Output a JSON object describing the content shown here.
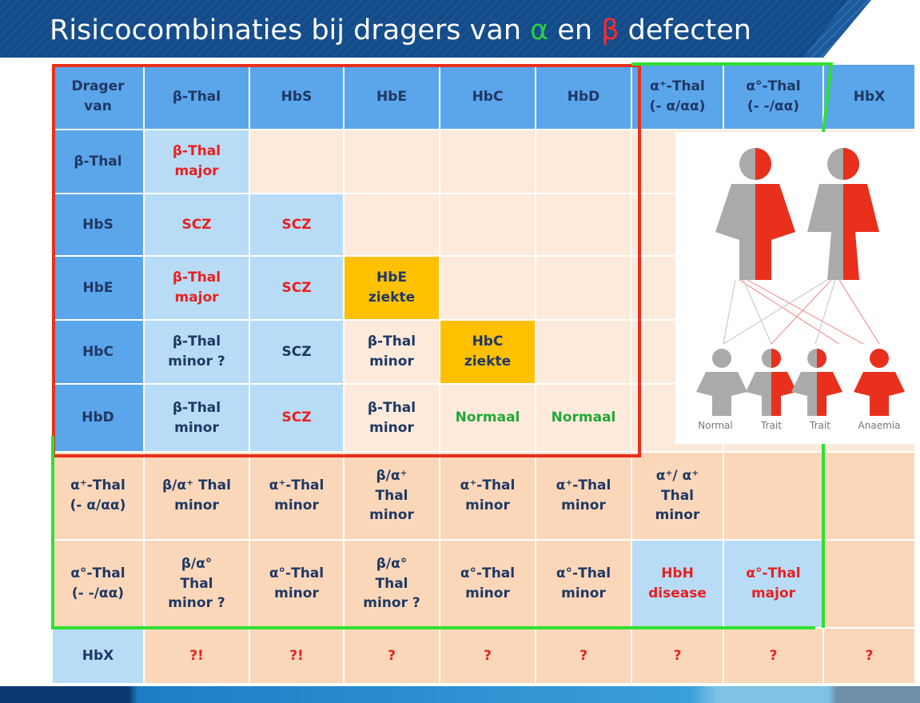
{
  "title": {
    "parts": [
      "Risicocombinaties bij dragers van ",
      "α",
      " en ",
      "β",
      " defecten"
    ]
  },
  "table": {
    "rows": [
      [
        [
          "Drager",
          "van"
        ],
        [
          "β-Thal"
        ],
        [
          "HbS"
        ],
        [
          "HbE"
        ],
        [
          "HbC"
        ],
        [
          "HbD"
        ],
        [
          "α⁺-Thal",
          "(- α/αα)"
        ],
        [
          "α°-Thal",
          "(- -/αα)"
        ],
        [
          "HbX"
        ]
      ],
      [
        [
          "β-Thal"
        ],
        [
          "β-Thal",
          "major"
        ],
        [],
        [],
        [],
        []
      ],
      [
        [
          "HbS"
        ],
        [
          "SCZ"
        ],
        [
          "SCZ"
        ],
        [],
        [],
        []
      ],
      [
        [
          "HbE"
        ],
        [
          "β-Thal",
          "major"
        ],
        [
          "SCZ"
        ],
        [
          "HbE",
          "ziekte"
        ],
        [],
        []
      ],
      [
        [
          "HbC"
        ],
        [
          "β-Thal",
          "minor ?"
        ],
        [
          "SCZ"
        ],
        [
          "β-Thal",
          "minor"
        ],
        [
          "HbC",
          "ziekte"
        ],
        []
      ],
      [
        [
          "HbD"
        ],
        [
          "β-Thal",
          "minor"
        ],
        [
          "SCZ"
        ],
        [
          "β-Thal",
          "minor"
        ],
        [
          "Normaal"
        ],
        [
          "Normaal"
        ]
      ],
      [
        [
          "α⁺-Thal",
          "(- α/αα)"
        ],
        [
          "β/α⁺ Thal",
          "minor"
        ],
        [
          "α⁺-Thal",
          "minor"
        ],
        [
          "β/α⁺",
          "Thal",
          "minor"
        ],
        [
          "α⁺-Thal",
          "minor"
        ],
        [
          "α⁺-Thal",
          "minor"
        ],
        [
          "α⁺/ α⁺",
          "Thal",
          "minor"
        ],
        [],
        []
      ],
      [
        [
          "α°-Thal",
          "(- -/αα)"
        ],
        [
          "β/α°",
          "Thal",
          "minor ?"
        ],
        [
          "α°-Thal",
          "minor"
        ],
        [
          "β/α°",
          "Thal",
          "minor ?"
        ],
        [
          "α°-Thal",
          "minor"
        ],
        [
          "α°-Thal",
          "minor"
        ],
        [
          "HbH",
          "disease"
        ],
        [
          "α°-Thal",
          "major"
        ],
        []
      ],
      [
        [
          "HbX"
        ],
        [
          "?!"
        ],
        [
          "?!"
        ],
        [
          "?"
        ],
        [
          "?"
        ],
        [
          "?"
        ],
        [
          "?"
        ],
        [
          "?"
        ],
        [
          "?"
        ]
      ]
    ]
  },
  "figure": {
    "labels": [
      "Normal",
      "Trait",
      "Trait",
      "Anaemia"
    ]
  }
}
